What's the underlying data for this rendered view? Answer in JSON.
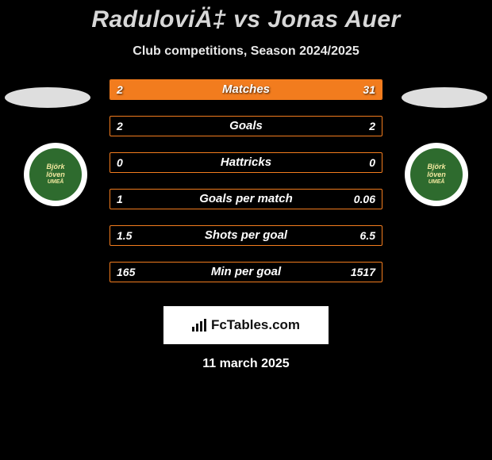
{
  "title": "RaduloviÄ‡ vs Jonas Auer",
  "subtitle": "Club competitions, Season 2024/2025",
  "date": "11 march 2025",
  "footer_brand": "FcTables.com",
  "club_logo_text_top": "Björk",
  "club_logo_text_mid": "löven",
  "club_logo_text_bot": "UMEÅ",
  "chart": {
    "bar_border_color": "#f27c1e",
    "bar_fill_color": "#f27c1e",
    "bar_empty_color": "transparent",
    "label_color": "#ffffff",
    "rows": [
      {
        "label": "Matches",
        "left_val": "2",
        "right_val": "31",
        "left_pct": 20,
        "right_pct": 80
      },
      {
        "label": "Goals",
        "left_val": "2",
        "right_val": "2",
        "left_pct": 0,
        "right_pct": 0
      },
      {
        "label": "Hattricks",
        "left_val": "0",
        "right_val": "0",
        "left_pct": 0,
        "right_pct": 0
      },
      {
        "label": "Goals per match",
        "left_val": "1",
        "right_val": "0.06",
        "left_pct": 0,
        "right_pct": 0
      },
      {
        "label": "Shots per goal",
        "left_val": "1.5",
        "right_val": "6.5",
        "left_pct": 0,
        "right_pct": 0
      },
      {
        "label": "Min per goal",
        "left_val": "165",
        "right_val": "1517",
        "left_pct": 0,
        "right_pct": 0
      }
    ]
  }
}
